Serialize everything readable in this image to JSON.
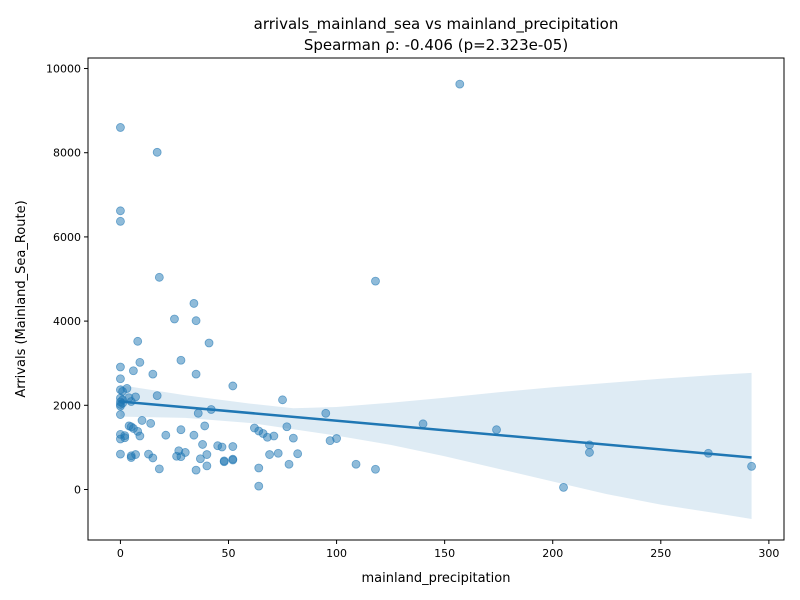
{
  "chart_data": {
    "type": "scatter",
    "title": "arrivals_mainland_sea vs mainland_precipitation",
    "subtitle": "Spearman ρ: -0.406 (p=2.323e-05)",
    "xlabel": "mainland_precipitation",
    "ylabel": "Arrivals (Mainland_Sea_Route)",
    "xlim": [
      -15,
      307
    ],
    "ylim": [
      -1200,
      10250
    ],
    "xticks": [
      0,
      50,
      100,
      150,
      200,
      250,
      300
    ],
    "yticks": [
      0,
      2000,
      4000,
      6000,
      8000,
      10000
    ],
    "grid": false,
    "point_color": "#1f77b4",
    "point_alpha": 0.5,
    "fit_line": {
      "color": "#1f77b4",
      "x": [
        0,
        292
      ],
      "y": [
        2090,
        760
      ]
    },
    "confidence_band": {
      "color": "#1f77b4",
      "alpha": 0.15,
      "x": [
        0,
        30,
        60,
        80,
        100,
        125,
        150,
        175,
        200,
        225,
        250,
        275,
        292
      ],
      "upper": [
        2480,
        2240,
        2040,
        1930,
        1960,
        2060,
        2180,
        2310,
        2430,
        2530,
        2630,
        2720,
        2770
      ],
      "lower": [
        1730,
        1700,
        1580,
        1430,
        1280,
        1060,
        790,
        490,
        190,
        -110,
        -360,
        -560,
        -700
      ]
    },
    "points": [
      [
        157,
        9630
      ],
      [
        0,
        8600
      ],
      [
        17,
        8010
      ],
      [
        0,
        6620
      ],
      [
        0,
        6370
      ],
      [
        18,
        5040
      ],
      [
        118,
        4950
      ],
      [
        34,
        4420
      ],
      [
        25,
        4050
      ],
      [
        35,
        4010
      ],
      [
        8,
        3520
      ],
      [
        41,
        3480
      ],
      [
        28,
        3070
      ],
      [
        9,
        3020
      ],
      [
        0,
        2910
      ],
      [
        6,
        2820
      ],
      [
        15,
        2740
      ],
      [
        35,
        2740
      ],
      [
        0,
        2630
      ],
      [
        52,
        2460
      ],
      [
        3,
        2400
      ],
      [
        0,
        2370
      ],
      [
        1,
        2330
      ],
      [
        17,
        2230
      ],
      [
        7,
        2200
      ],
      [
        4,
        2180
      ],
      [
        0,
        2170
      ],
      [
        1,
        2130
      ],
      [
        75,
        2130
      ],
      [
        5,
        2090
      ],
      [
        0,
        2080
      ],
      [
        1,
        2050
      ],
      [
        0,
        2020
      ],
      [
        0,
        1980
      ],
      [
        42,
        1900
      ],
      [
        36,
        1810
      ],
      [
        95,
        1810
      ],
      [
        0,
        1780
      ],
      [
        10,
        1640
      ],
      [
        14,
        1570
      ],
      [
        140,
        1560
      ],
      [
        4,
        1510
      ],
      [
        5,
        1490
      ],
      [
        39,
        1510
      ],
      [
        77,
        1490
      ],
      [
        62,
        1460
      ],
      [
        6,
        1450
      ],
      [
        64,
        1390
      ],
      [
        174,
        1420
      ],
      [
        8,
        1380
      ],
      [
        28,
        1420
      ],
      [
        66,
        1330
      ],
      [
        0,
        1310
      ],
      [
        2,
        1280
      ],
      [
        21,
        1290
      ],
      [
        34,
        1290
      ],
      [
        71,
        1270
      ],
      [
        9,
        1270
      ],
      [
        68,
        1240
      ],
      [
        80,
        1220
      ],
      [
        100,
        1210
      ],
      [
        2,
        1230
      ],
      [
        0,
        1200
      ],
      [
        97,
        1160
      ],
      [
        38,
        1070
      ],
      [
        217,
        1060
      ],
      [
        45,
        1040
      ],
      [
        47,
        1010
      ],
      [
        52,
        1020
      ],
      [
        27,
        920
      ],
      [
        30,
        880
      ],
      [
        13,
        840
      ],
      [
        0,
        840
      ],
      [
        40,
        830
      ],
      [
        82,
        850
      ],
      [
        69,
        830
      ],
      [
        73,
        860
      ],
      [
        217,
        880
      ],
      [
        272,
        860
      ],
      [
        7,
        830
      ],
      [
        5,
        800
      ],
      [
        26,
        790
      ],
      [
        28,
        780
      ],
      [
        15,
        750
      ],
      [
        5,
        760
      ],
      [
        37,
        730
      ],
      [
        52,
        720
      ],
      [
        48,
        680
      ],
      [
        52,
        700
      ],
      [
        48,
        660
      ],
      [
        109,
        600
      ],
      [
        78,
        600
      ],
      [
        40,
        560
      ],
      [
        292,
        550
      ],
      [
        64,
        510
      ],
      [
        18,
        490
      ],
      [
        35,
        460
      ],
      [
        118,
        480
      ],
      [
        64,
        80
      ],
      [
        205,
        50
      ]
    ]
  }
}
